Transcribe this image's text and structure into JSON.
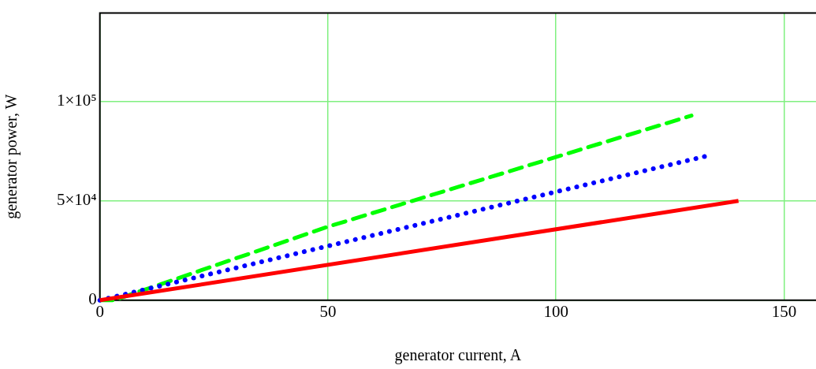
{
  "chart_data": {
    "type": "line",
    "xlabel": "generator current, A",
    "ylabel": "generator power, W",
    "xlim": [
      0,
      157
    ],
    "xticks": [
      0,
      50,
      100,
      150
    ],
    "ylim": [
      0,
      144500
    ],
    "yticks": [
      {
        "value": 0,
        "label": "0"
      },
      {
        "value": 50000,
        "label": "5×10⁴"
      },
      {
        "value": 100000,
        "label": "1×10⁵"
      }
    ],
    "grid": true,
    "legend": false,
    "marker": "none",
    "series": [
      {
        "color": "#ff0000",
        "line_style": "solid",
        "x": [
          0,
          140
        ],
        "values": [
          0,
          50000
        ]
      },
      {
        "color": "#0000ff",
        "line_style": "dotted",
        "x": [
          0,
          132.7
        ],
        "values": [
          0,
          72400
        ]
      },
      {
        "color": "#00ff00",
        "line_style": "dashed",
        "x": [
          0,
          3,
          5,
          50,
          129.7
        ],
        "values": [
          0,
          0,
          1500,
          37000,
          92900
        ]
      }
    ]
  }
}
